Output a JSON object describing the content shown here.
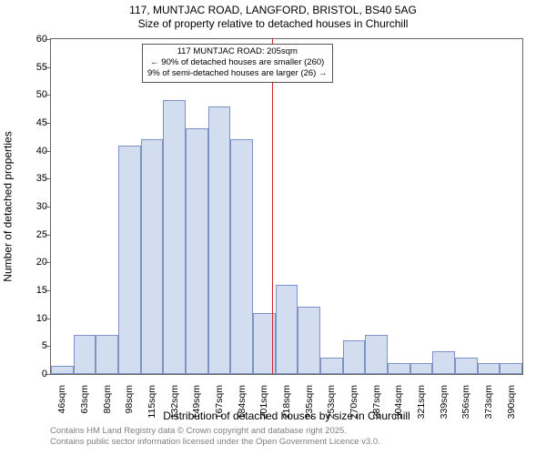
{
  "title_line1": "117, MUNTJAC ROAD, LANGFORD, BRISTOL, BS40 5AG",
  "title_line2": "Size of property relative to detached houses in Churchill",
  "ylabel": "Number of detached properties",
  "xlabel": "Distribution of detached houses by size in Churchill",
  "footer_line1": "Contains HM Land Registry data © Crown copyright and database right 2025.",
  "footer_line2": "Contains public sector information licensed under the Open Government Licence v3.0.",
  "chart": {
    "type": "histogram",
    "ylim": [
      0,
      60
    ],
    "ytick_step": 5,
    "background_color": "#ffffff",
    "border_color": "#666666",
    "bar_fill": "#d2deef",
    "bar_border": "#7c93c3",
    "bar_width_ratio": 1.0,
    "ref_line_color": "#d4262a",
    "ref_value_index": 9.35,
    "xtick_labels": [
      "46sqm",
      "63sqm",
      "80sqm",
      "98sqm",
      "115sqm",
      "132sqm",
      "149sqm",
      "167sqm",
      "184sqm",
      "201sqm",
      "218sqm",
      "235sqm",
      "253sqm",
      "270sqm",
      "287sqm",
      "304sqm",
      "321sqm",
      "339sqm",
      "356sqm",
      "373sqm",
      "390sqm"
    ],
    "values": [
      1.5,
      7,
      7,
      41,
      42,
      49,
      44,
      48,
      42,
      11,
      16,
      12,
      3,
      6,
      7,
      2,
      2,
      4,
      3,
      2,
      2
    ],
    "annotation": {
      "line1": "117 MUNTJAC ROAD: 205sqm",
      "line2": "← 90% of detached houses are smaller (260)",
      "line3": "9% of semi-detached houses are larger (26) →"
    },
    "label_fontsize": 12,
    "tick_fontsize": 11,
    "xtick_fontsize": 10.5,
    "anno_fontsize": 9.5
  }
}
